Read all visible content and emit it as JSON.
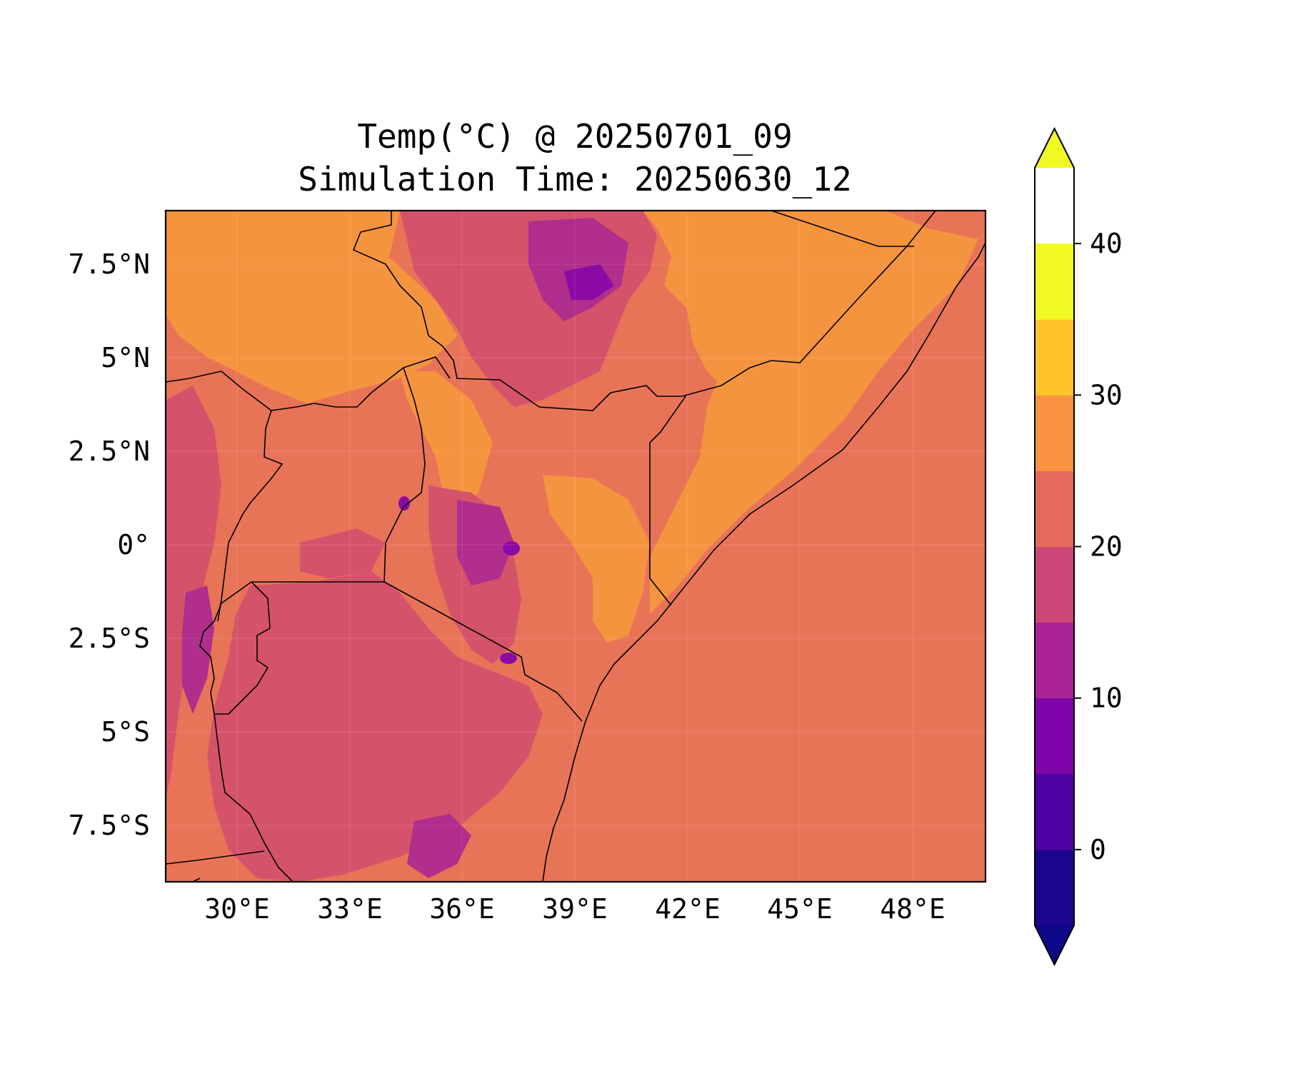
{
  "title": {
    "line1": "Temp(°C) @ 20250701_09",
    "line2": "Simulation Time: 20250630_12"
  },
  "map_data": {
    "type": "filled-contour-map",
    "variable": "Temperature",
    "units": "°C",
    "lon_range": [
      27.5,
      49.5
    ],
    "lat_range": [
      -9.0,
      9.0
    ],
    "lon_ticks": [
      "30°E",
      "33°E",
      "36°E",
      "39°E",
      "42°E",
      "45°E",
      "48°E"
    ],
    "lat_ticks": [
      "7.5°N",
      "5°N",
      "2.5°N",
      "0°",
      "2.5°S",
      "5°S",
      "7.5°S"
    ],
    "features": [
      "coastline",
      "country-borders"
    ]
  },
  "colorbar": {
    "ticks": [
      "0",
      "10",
      "20",
      "30",
      "40"
    ],
    "levels": [
      -5,
      0,
      5,
      10,
      15,
      20,
      25,
      30,
      35,
      40,
      45
    ],
    "colors": [
      "#1d068f",
      "#4f02a2",
      "#7e03a8",
      "#a92395",
      "#cc4778",
      "#e56b5d",
      "#f89441",
      "#fdc328",
      "#f0f921"
    ],
    "under_color": "#0d0887",
    "over_color": "#f0f921",
    "extend": "both",
    "colormap": "plasma"
  }
}
